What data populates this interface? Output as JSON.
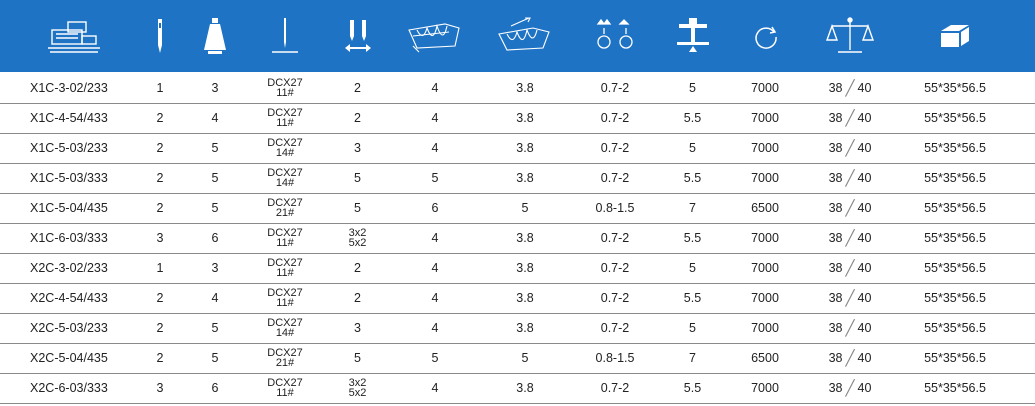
{
  "header": {
    "icons": [
      "machine-icon",
      "needle-count-icon",
      "thread-cone-icon",
      "needle-system-icon",
      "stitch-width-icon",
      "overlock-stitch-icon",
      "differential-feed-icon",
      "stitch-length-icon",
      "presser-foot-lift-icon",
      "speed-icon",
      "weight-icon",
      "package-size-icon"
    ],
    "accent": "#1f73c4"
  },
  "rows": [
    {
      "model": "X1C-3-02/233",
      "needles": "1",
      "threads": "3",
      "needle_sys": "DCX27",
      "needle_size": "11#",
      "width_a": "2",
      "width_b": "",
      "overlock": "4",
      "diff": "3.8",
      "stitch_len": "0.7-2",
      "lift": "5",
      "speed": "7000",
      "wt_net": "38",
      "wt_gross": "40",
      "pkg": "55*35*56.5"
    },
    {
      "model": "X1C-4-54/433",
      "needles": "2",
      "threads": "4",
      "needle_sys": "DCX27",
      "needle_size": "11#",
      "width_a": "2",
      "width_b": "",
      "overlock": "4",
      "diff": "3.8",
      "stitch_len": "0.7-2",
      "lift": "5.5",
      "speed": "7000",
      "wt_net": "38",
      "wt_gross": "40",
      "pkg": "55*35*56.5"
    },
    {
      "model": "X1C-5-03/233",
      "needles": "2",
      "threads": "5",
      "needle_sys": "DCX27",
      "needle_size": "14#",
      "width_a": "3",
      "width_b": "",
      "overlock": "4",
      "diff": "3.8",
      "stitch_len": "0.7-2",
      "lift": "5",
      "speed": "7000",
      "wt_net": "38",
      "wt_gross": "40",
      "pkg": "55*35*56.5"
    },
    {
      "model": "X1C-5-03/333",
      "needles": "2",
      "threads": "5",
      "needle_sys": "DCX27",
      "needle_size": "14#",
      "width_a": "5",
      "width_b": "",
      "overlock": "5",
      "diff": "3.8",
      "stitch_len": "0.7-2",
      "lift": "5.5",
      "speed": "7000",
      "wt_net": "38",
      "wt_gross": "40",
      "pkg": "55*35*56.5"
    },
    {
      "model": "X1C-5-04/435",
      "needles": "2",
      "threads": "5",
      "needle_sys": "DCX27",
      "needle_size": "21#",
      "width_a": "5",
      "width_b": "",
      "overlock": "6",
      "diff": "5",
      "stitch_len": "0.8-1.5",
      "lift": "7",
      "speed": "6500",
      "wt_net": "38",
      "wt_gross": "40",
      "pkg": "55*35*56.5"
    },
    {
      "model": "X1C-6-03/333",
      "needles": "3",
      "threads": "6",
      "needle_sys": "DCX27",
      "needle_size": "11#",
      "width_a": "3x2",
      "width_b": "5x2",
      "overlock": "4",
      "diff": "3.8",
      "stitch_len": "0.7-2",
      "lift": "5.5",
      "speed": "7000",
      "wt_net": "38",
      "wt_gross": "40",
      "pkg": "55*35*56.5"
    },
    {
      "model": "X2C-3-02/233",
      "needles": "1",
      "threads": "3",
      "needle_sys": "DCX27",
      "needle_size": "11#",
      "width_a": "2",
      "width_b": "",
      "overlock": "4",
      "diff": "3.8",
      "stitch_len": "0.7-2",
      "lift": "5",
      "speed": "7000",
      "wt_net": "38",
      "wt_gross": "40",
      "pkg": "55*35*56.5"
    },
    {
      "model": "X2C-4-54/433",
      "needles": "2",
      "threads": "4",
      "needle_sys": "DCX27",
      "needle_size": "11#",
      "width_a": "2",
      "width_b": "",
      "overlock": "4",
      "diff": "3.8",
      "stitch_len": "0.7-2",
      "lift": "5.5",
      "speed": "7000",
      "wt_net": "38",
      "wt_gross": "40",
      "pkg": "55*35*56.5"
    },
    {
      "model": "X2C-5-03/233",
      "needles": "2",
      "threads": "5",
      "needle_sys": "DCX27",
      "needle_size": "14#",
      "width_a": "3",
      "width_b": "",
      "overlock": "4",
      "diff": "3.8",
      "stitch_len": "0.7-2",
      "lift": "5",
      "speed": "7000",
      "wt_net": "38",
      "wt_gross": "40",
      "pkg": "55*35*56.5"
    },
    {
      "model": "X2C-5-04/435",
      "needles": "2",
      "threads": "5",
      "needle_sys": "DCX27",
      "needle_size": "21#",
      "width_a": "5",
      "width_b": "",
      "overlock": "5",
      "diff": "5",
      "stitch_len": "0.8-1.5",
      "lift": "7",
      "speed": "6500",
      "wt_net": "38",
      "wt_gross": "40",
      "pkg": "55*35*56.5"
    },
    {
      "model": "X2C-6-03/333",
      "needles": "3",
      "threads": "6",
      "needle_sys": "DCX27",
      "needle_size": "11#",
      "width_a": "3x2",
      "width_b": "5x2",
      "overlock": "4",
      "diff": "3.8",
      "stitch_len": "0.7-2",
      "lift": "5.5",
      "speed": "7000",
      "wt_net": "38",
      "wt_gross": "40",
      "pkg": "55*35*56.5"
    }
  ]
}
